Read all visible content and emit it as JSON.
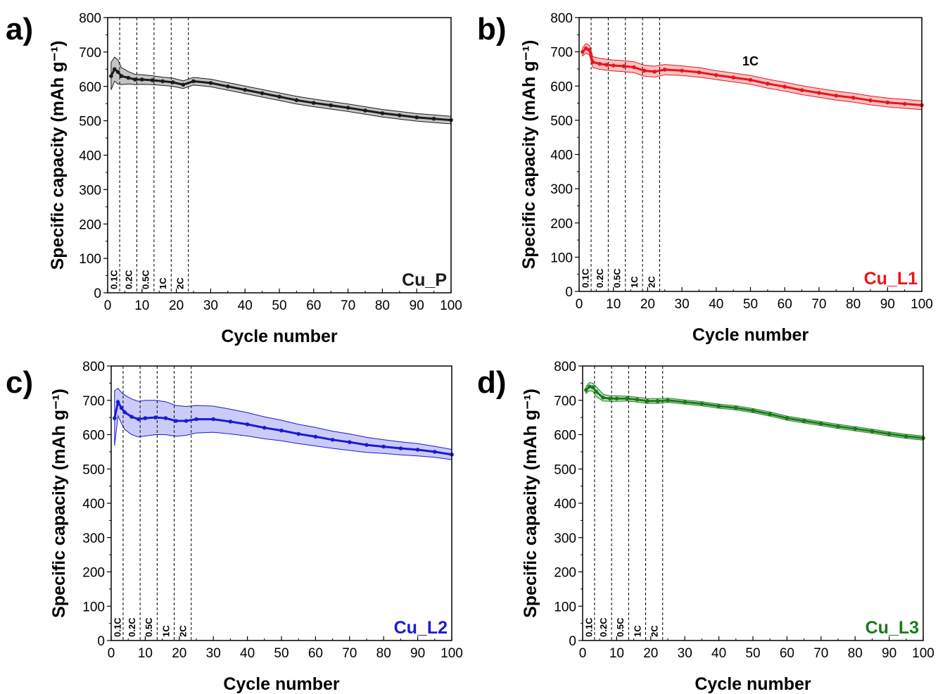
{
  "chart_data": [
    {
      "type": "line",
      "panel_label": "a)",
      "sample_label": "Cu_P",
      "color": "#1a1a1a",
      "band_color": "#7f7f7f",
      "xlabel": "Cycle number",
      "ylabel": "Specific capacity (mAh g⁻¹)",
      "xlim": [
        0,
        100
      ],
      "ylim": [
        0,
        800
      ],
      "xticks": [
        0,
        10,
        20,
        30,
        40,
        50,
        60,
        70,
        80,
        90,
        100
      ],
      "yticks": [
        0,
        100,
        200,
        300,
        400,
        500,
        600,
        700,
        800
      ],
      "rate_boundaries": [
        3.5,
        8.5,
        13.5,
        18.5,
        23.5
      ],
      "rate_labels": [
        "0.1C",
        "0.2C",
        "0.5C",
        "1C",
        "2C"
      ],
      "annotation": "",
      "series": [
        {
          "x": [
            1,
            2,
            3,
            4,
            6,
            8,
            10,
            13,
            16,
            19,
            22,
            25,
            30,
            35,
            40,
            45,
            50,
            55,
            60,
            65,
            70,
            75,
            80,
            85,
            90,
            95,
            100
          ],
          "y": [
            630,
            650,
            642,
            630,
            625,
            620,
            620,
            618,
            615,
            612,
            605,
            615,
            610,
            600,
            590,
            580,
            570,
            560,
            552,
            545,
            538,
            530,
            522,
            516,
            510,
            506,
            502
          ],
          "err": [
            40,
            35,
            35,
            25,
            18,
            15,
            14,
            13,
            12,
            12,
            11,
            11,
            11,
            11,
            11,
            11,
            11,
            11,
            11,
            11,
            11,
            11,
            11,
            11,
            11,
            11,
            11
          ]
        }
      ]
    },
    {
      "type": "line",
      "panel_label": "b)",
      "sample_label": "Cu_L1",
      "color": "#e8141c",
      "band_color": "#f07a7a",
      "xlabel": "Cycle number",
      "ylabel": "Specific capacity (mAh g⁻¹)",
      "xlim": [
        0,
        100
      ],
      "ylim": [
        0,
        800
      ],
      "xticks": [
        0,
        10,
        20,
        30,
        40,
        50,
        60,
        70,
        80,
        90,
        100
      ],
      "yticks": [
        0,
        100,
        200,
        300,
        400,
        500,
        600,
        700,
        800
      ],
      "rate_boundaries": [
        3.5,
        8.5,
        13.5,
        18.5,
        23.5
      ],
      "rate_labels": [
        "0.1C",
        "0.2C",
        "0.5C",
        "1C",
        "2C"
      ],
      "annotation": "1C",
      "annotation_x": 50,
      "annotation_y": 660,
      "series": [
        {
          "x": [
            1,
            2,
            3,
            4,
            6,
            8,
            10,
            13,
            16,
            19,
            22,
            25,
            30,
            35,
            40,
            45,
            50,
            55,
            60,
            65,
            70,
            75,
            80,
            85,
            90,
            95,
            100
          ],
          "y": [
            700,
            710,
            705,
            670,
            665,
            662,
            660,
            658,
            655,
            645,
            642,
            648,
            645,
            640,
            632,
            625,
            618,
            607,
            598,
            588,
            580,
            572,
            566,
            558,
            552,
            548,
            544
          ],
          "err": [
            12,
            14,
            14,
            16,
            16,
            16,
            16,
            16,
            16,
            16,
            16,
            15,
            14,
            14,
            13,
            13,
            13,
            13,
            13,
            13,
            13,
            13,
            13,
            13,
            13,
            13,
            13
          ]
        }
      ]
    },
    {
      "type": "line",
      "panel_label": "c)",
      "sample_label": "Cu_L2",
      "color": "#1a1ad6",
      "band_color": "#8c8cf0",
      "xlabel": "Cycle number",
      "ylabel": "Specific capacity (mAh g⁻¹)",
      "xlim": [
        0,
        100
      ],
      "ylim": [
        0,
        800
      ],
      "xticks": [
        0,
        10,
        20,
        30,
        40,
        50,
        60,
        70,
        80,
        90,
        100
      ],
      "yticks": [
        0,
        100,
        200,
        300,
        400,
        500,
        600,
        700,
        800
      ],
      "rate_boundaries": [
        3.5,
        8.5,
        13.5,
        18.5,
        23.5
      ],
      "rate_labels": [
        "0.1C",
        "0.2C",
        "0.5C",
        "1C",
        "2C"
      ],
      "annotation": "",
      "series": [
        {
          "x": [
            1,
            2,
            3,
            4,
            6,
            8,
            10,
            13,
            16,
            19,
            22,
            25,
            30,
            35,
            40,
            45,
            50,
            55,
            60,
            65,
            70,
            75,
            80,
            85,
            90,
            95,
            100
          ],
          "y": [
            648,
            695,
            678,
            665,
            652,
            645,
            648,
            650,
            648,
            640,
            640,
            645,
            645,
            638,
            630,
            620,
            612,
            602,
            594,
            585,
            578,
            570,
            565,
            560,
            556,
            550,
            542
          ],
          "err": [
            80,
            40,
            45,
            50,
            52,
            52,
            52,
            50,
            48,
            45,
            42,
            40,
            38,
            36,
            34,
            32,
            30,
            28,
            27,
            25,
            24,
            22,
            20,
            19,
            18,
            16,
            15
          ]
        }
      ]
    },
    {
      "type": "line",
      "panel_label": "d)",
      "sample_label": "Cu_L3",
      "color": "#1a7a1a",
      "band_color": "#7fbf7f",
      "xlabel": "Cycle number",
      "ylabel": "Specific capacity (mAh g⁻¹)",
      "xlim": [
        0,
        100
      ],
      "ylim": [
        0,
        800
      ],
      "xticks": [
        0,
        10,
        20,
        30,
        40,
        50,
        60,
        70,
        80,
        90,
        100
      ],
      "yticks": [
        0,
        100,
        200,
        300,
        400,
        500,
        600,
        700,
        800
      ],
      "rate_boundaries": [
        3.5,
        8.5,
        13.5,
        18.5,
        23.5
      ],
      "rate_labels": [
        "0.1C",
        "0.2C",
        "0.5C",
        "1C",
        "2C"
      ],
      "annotation": "",
      "series": [
        {
          "x": [
            1,
            2,
            3,
            4,
            6,
            8,
            10,
            13,
            16,
            19,
            22,
            25,
            30,
            35,
            40,
            45,
            50,
            55,
            60,
            65,
            70,
            75,
            80,
            85,
            90,
            95,
            100
          ],
          "y": [
            730,
            740,
            738,
            725,
            708,
            705,
            705,
            705,
            702,
            698,
            698,
            700,
            695,
            690,
            683,
            678,
            670,
            660,
            648,
            640,
            632,
            624,
            617,
            610,
            602,
            595,
            590
          ],
          "err": [
            10,
            12,
            12,
            14,
            10,
            8,
            8,
            7,
            7,
            7,
            7,
            6,
            6,
            6,
            6,
            6,
            6,
            6,
            6,
            6,
            6,
            6,
            6,
            6,
            6,
            6,
            6
          ]
        }
      ]
    }
  ]
}
